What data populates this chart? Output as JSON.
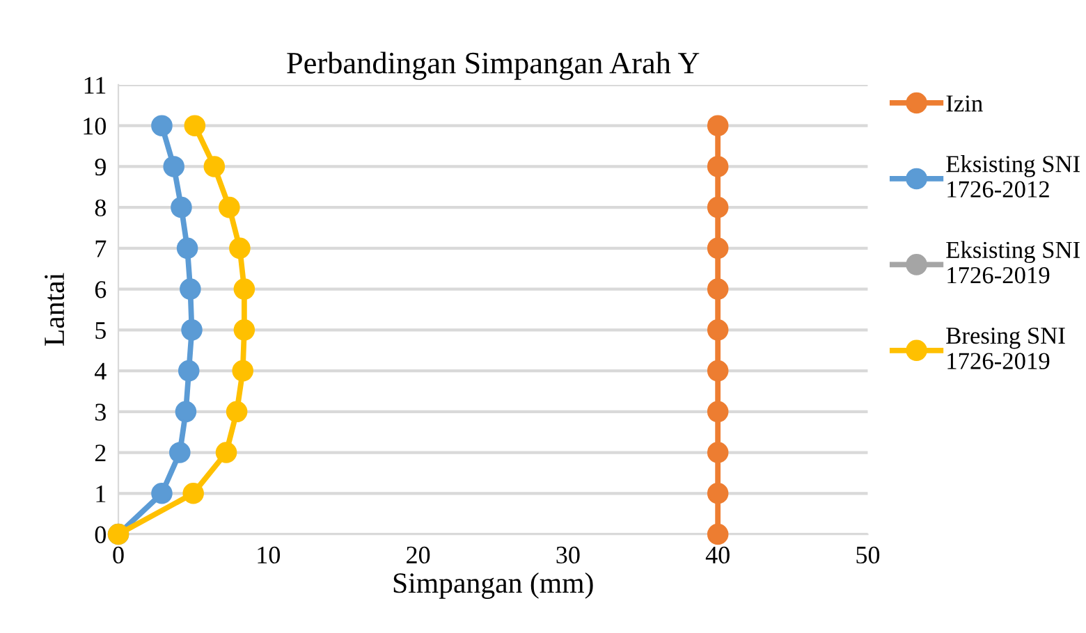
{
  "chart_data": {
    "type": "line",
    "title": "Perbandingan Simpangan Arah Y",
    "xlabel": "Simpangan (mm)",
    "ylabel": "Lantai",
    "xlim": [
      0,
      50
    ],
    "xticks": [
      0,
      10,
      20,
      30,
      40,
      50
    ],
    "ylim": [
      0,
      11
    ],
    "yticks": [
      0,
      1,
      2,
      3,
      4,
      5,
      6,
      7,
      8,
      9,
      10,
      11
    ],
    "grid": "y",
    "legend": "right",
    "marker": "circle",
    "series": [
      {
        "name": "Izin",
        "color": "#ed7d31",
        "x": [
          40,
          40,
          40,
          40,
          40,
          40,
          40,
          40,
          40,
          40,
          40
        ],
        "values": [
          0,
          1,
          2,
          3,
          4,
          5,
          6,
          7,
          8,
          9,
          10
        ]
      },
      {
        "name": "Eksisting SNI\n1726-2012",
        "color": "#5b9bd5",
        "x": [
          0,
          2.9,
          4.1,
          4.5,
          4.7,
          4.9,
          4.8,
          4.6,
          4.2,
          3.7,
          2.9
        ],
        "values": [
          0,
          1,
          2,
          3,
          4,
          5,
          6,
          7,
          8,
          9,
          10
        ]
      },
      {
        "name": "Eksisting SNI\n1726-2019",
        "color": "#a5a5a5",
        "x": [
          null,
          null,
          null,
          null,
          null,
          null,
          null,
          null,
          null,
          null,
          null
        ],
        "values": [
          null,
          null,
          null,
          null,
          null,
          null,
          null,
          null,
          null,
          null,
          null
        ]
      },
      {
        "name": "Bresing SNI\n1726-2019",
        "color": "#ffc000",
        "x": [
          0,
          5.0,
          7.2,
          7.9,
          8.3,
          8.4,
          8.4,
          8.1,
          7.4,
          6.4,
          5.1
        ],
        "values": [
          0,
          1,
          2,
          3,
          4,
          5,
          6,
          7,
          8,
          9,
          10
        ]
      }
    ]
  }
}
